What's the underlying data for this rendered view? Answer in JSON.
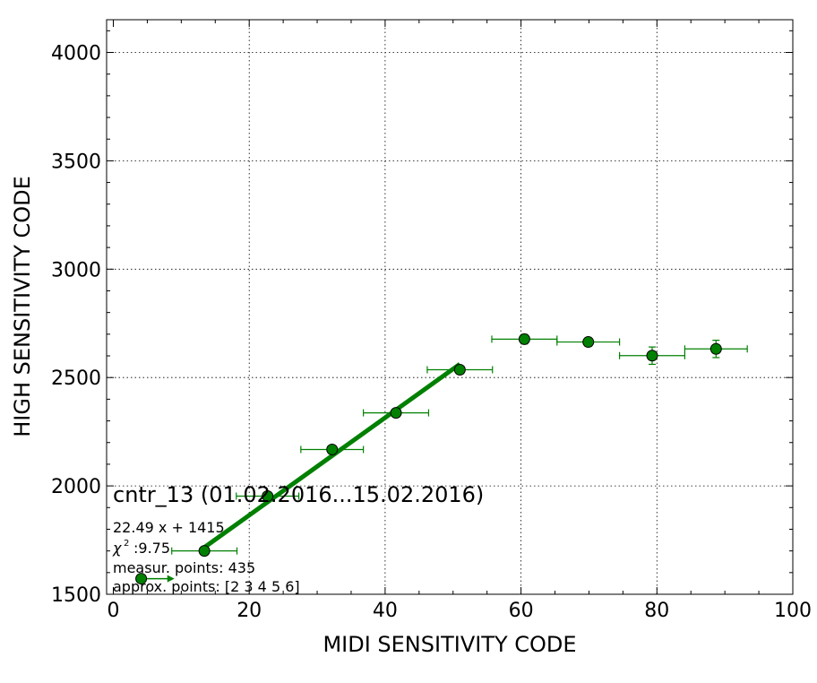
{
  "chart_data": {
    "type": "scatter",
    "xlabel": "MIDI SENSITIVITY CODE",
    "ylabel": "HIGH SENSITIVITY CODE",
    "xlim": [
      0,
      100
    ],
    "ylim": [
      1500,
      4150
    ],
    "x_ticks": [
      "0",
      "20",
      "40",
      "60",
      "80",
      "100"
    ],
    "y_ticks": [
      "1500",
      "2000",
      "2500",
      "3000",
      "3500",
      "4000"
    ],
    "grid": true,
    "colors": {
      "series": "#008000",
      "marker_edge": "#000000"
    },
    "series": [
      {
        "points": [
          {
            "x": 4.1,
            "y": 1572,
            "xerr": 0,
            "yerr": 0
          },
          {
            "x": 13.4,
            "y": 1700,
            "xerr": 4.8,
            "yerr": 0
          },
          {
            "x": 22.7,
            "y": 1953,
            "xerr": 4.6,
            "yerr": 0
          },
          {
            "x": 32.2,
            "y": 2168,
            "xerr": 4.6,
            "yerr": 0
          },
          {
            "x": 41.6,
            "y": 2337,
            "xerr": 4.8,
            "yerr": 0
          },
          {
            "x": 51.0,
            "y": 2536,
            "xerr": 4.8,
            "yerr": 0
          },
          {
            "x": 60.5,
            "y": 2677,
            "xerr": 4.8,
            "yerr": 22
          },
          {
            "x": 69.9,
            "y": 2664,
            "xerr": 4.6,
            "yerr": 20
          },
          {
            "x": 79.3,
            "y": 2601,
            "xerr": 4.8,
            "yerr": 40
          },
          {
            "x": 88.7,
            "y": 2632,
            "xerr": 4.6,
            "yerr": 40
          }
        ]
      }
    ],
    "fit": {
      "slope": 22.49,
      "intercept": 1415,
      "x_range": [
        13.4,
        51.0
      ]
    },
    "arrow": {
      "x_start": 4.1,
      "x_end": 9.0,
      "y": 1572
    },
    "annotations": {
      "title": "cntr_13 (01.02.2016...15.02.2016)",
      "equation": "22.49 x + 1415",
      "chi_symbol": "χ",
      "chi_power": "2",
      "chi_value": ":9.75",
      "measur": "measur. points: 435",
      "approx": "approx. points: [2 3 4 5 6]"
    }
  }
}
